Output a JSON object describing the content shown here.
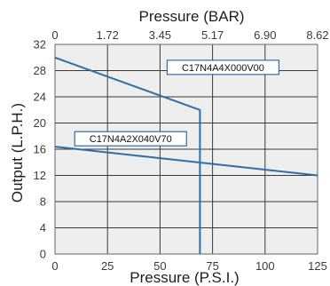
{
  "chart_data": {
    "type": "line",
    "x_top_label": "Pressure (BAR)",
    "x_bottom_label": "Pressure (P.S.I.)",
    "y_label": "Output (L.P.H.)",
    "x_top_ticks": [
      "0",
      "1.72",
      "3.45",
      "5.17",
      "6.90",
      "8.62"
    ],
    "x_bottom_ticks": [
      "0",
      "25",
      "50",
      "75",
      "100",
      "125"
    ],
    "y_ticks": [
      "0",
      "4",
      "8",
      "12",
      "16",
      "20",
      "24",
      "28",
      "32"
    ],
    "xlim": [
      0,
      125
    ],
    "ylim": [
      0,
      32
    ],
    "x_tick_values": [
      0,
      25,
      50,
      75,
      100,
      125
    ],
    "y_tick_values": [
      0,
      4,
      8,
      12,
      16,
      20,
      24,
      28,
      32
    ],
    "grid": true,
    "series": [
      {
        "name": "C17N4A4X000V00",
        "color": "#2f6fa8",
        "points": [
          [
            0,
            30
          ],
          [
            69,
            22
          ],
          [
            69,
            0
          ]
        ]
      },
      {
        "name": "C17N4A2X040V70",
        "color": "#2f6fa8",
        "points": [
          [
            0,
            16.4
          ],
          [
            125,
            12
          ]
        ]
      }
    ],
    "annotations": [
      {
        "text": "C17N4A4X000V00",
        "x": 80,
        "y": 28.5
      },
      {
        "text": "C17N4A2X040V70",
        "x": 36,
        "y": 17.6
      }
    ]
  }
}
